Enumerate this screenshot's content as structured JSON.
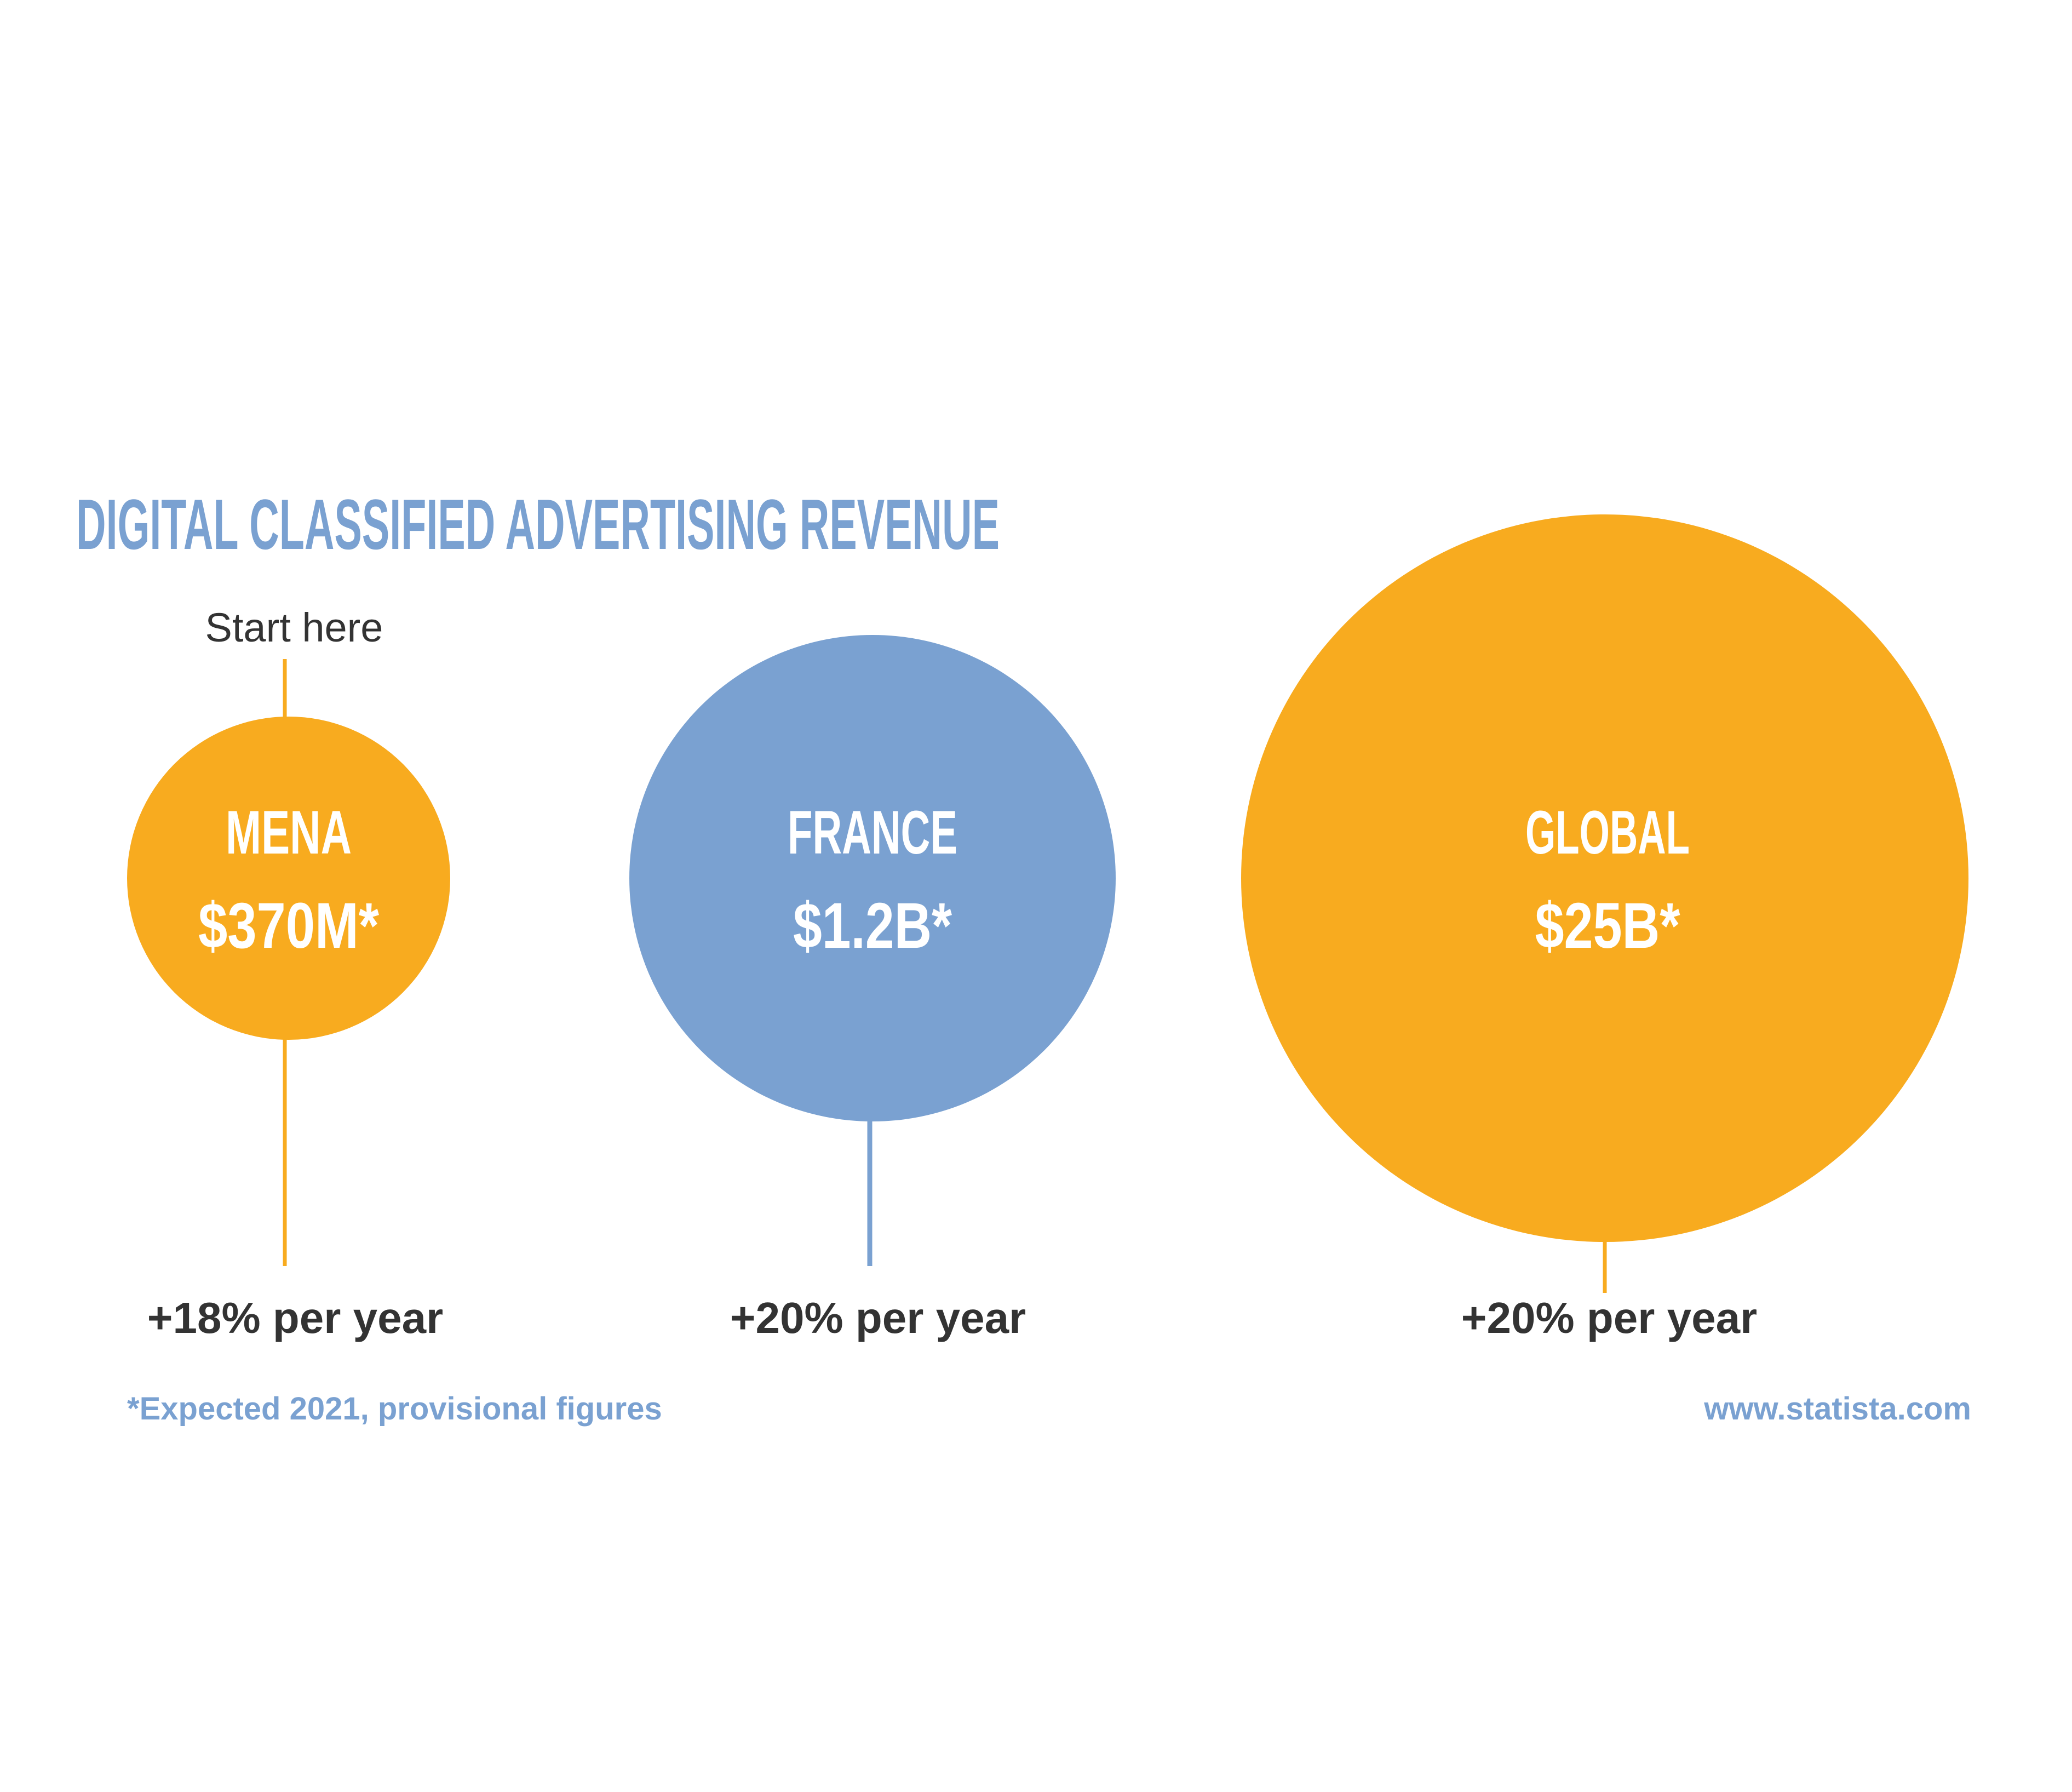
{
  "title": "DIGITAL CLASSIFIED ADVERTISING REVENUE",
  "start_label": "Start here",
  "bubbles": [
    {
      "region": "MENA",
      "value": "$370M*",
      "growth": "+18% per year"
    },
    {
      "region": "FRANCE",
      "value": "$1.2B*",
      "growth": "+20% per year"
    },
    {
      "region": "GLOBAL",
      "value": "$25B*",
      "growth": "+20% per year"
    }
  ],
  "footnote": "*Expected 2021, provisional figures",
  "source": "www.statista.com"
}
